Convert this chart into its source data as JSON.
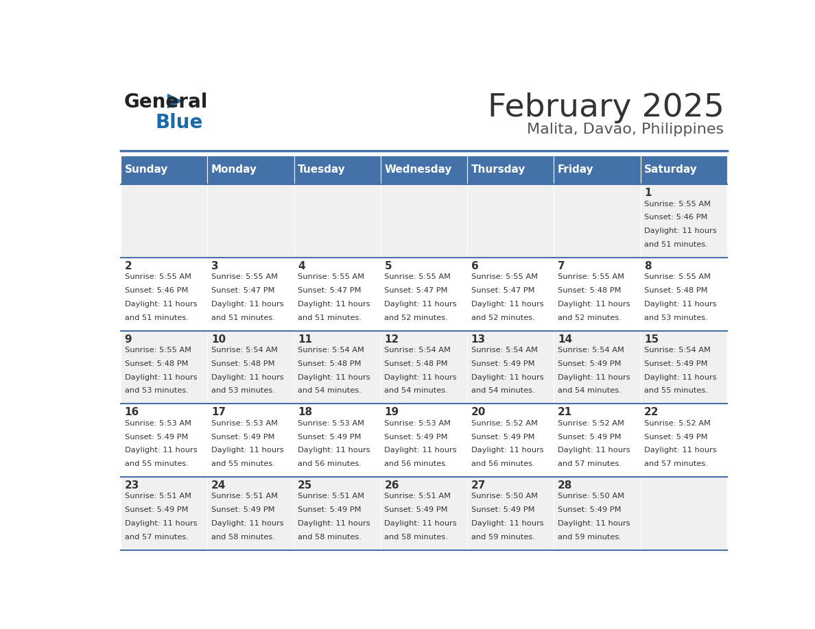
{
  "title": "February 2025",
  "subtitle": "Malita, Davao, Philippines",
  "days_of_week": [
    "Sunday",
    "Monday",
    "Tuesday",
    "Wednesday",
    "Thursday",
    "Friday",
    "Saturday"
  ],
  "header_bg": "#4472a8",
  "header_text": "#ffffff",
  "row_bg_odd": "#f0f0f0",
  "row_bg_even": "#ffffff",
  "cell_border": "#4472a8",
  "day_number_color": "#333333",
  "info_text_color": "#333333",
  "title_color": "#333333",
  "subtitle_color": "#555555",
  "logo_general_color": "#222222",
  "logo_blue_color": "#1a6aaa",
  "calendar_data": [
    [
      {
        "day": null,
        "info": ""
      },
      {
        "day": null,
        "info": ""
      },
      {
        "day": null,
        "info": ""
      },
      {
        "day": null,
        "info": ""
      },
      {
        "day": null,
        "info": ""
      },
      {
        "day": null,
        "info": ""
      },
      {
        "day": 1,
        "info": "Sunrise: 5:55 AM\nSunset: 5:46 PM\nDaylight: 11 hours\nand 51 minutes."
      }
    ],
    [
      {
        "day": 2,
        "info": "Sunrise: 5:55 AM\nSunset: 5:46 PM\nDaylight: 11 hours\nand 51 minutes."
      },
      {
        "day": 3,
        "info": "Sunrise: 5:55 AM\nSunset: 5:47 PM\nDaylight: 11 hours\nand 51 minutes."
      },
      {
        "day": 4,
        "info": "Sunrise: 5:55 AM\nSunset: 5:47 PM\nDaylight: 11 hours\nand 51 minutes."
      },
      {
        "day": 5,
        "info": "Sunrise: 5:55 AM\nSunset: 5:47 PM\nDaylight: 11 hours\nand 52 minutes."
      },
      {
        "day": 6,
        "info": "Sunrise: 5:55 AM\nSunset: 5:47 PM\nDaylight: 11 hours\nand 52 minutes."
      },
      {
        "day": 7,
        "info": "Sunrise: 5:55 AM\nSunset: 5:48 PM\nDaylight: 11 hours\nand 52 minutes."
      },
      {
        "day": 8,
        "info": "Sunrise: 5:55 AM\nSunset: 5:48 PM\nDaylight: 11 hours\nand 53 minutes."
      }
    ],
    [
      {
        "day": 9,
        "info": "Sunrise: 5:55 AM\nSunset: 5:48 PM\nDaylight: 11 hours\nand 53 minutes."
      },
      {
        "day": 10,
        "info": "Sunrise: 5:54 AM\nSunset: 5:48 PM\nDaylight: 11 hours\nand 53 minutes."
      },
      {
        "day": 11,
        "info": "Sunrise: 5:54 AM\nSunset: 5:48 PM\nDaylight: 11 hours\nand 54 minutes."
      },
      {
        "day": 12,
        "info": "Sunrise: 5:54 AM\nSunset: 5:48 PM\nDaylight: 11 hours\nand 54 minutes."
      },
      {
        "day": 13,
        "info": "Sunrise: 5:54 AM\nSunset: 5:49 PM\nDaylight: 11 hours\nand 54 minutes."
      },
      {
        "day": 14,
        "info": "Sunrise: 5:54 AM\nSunset: 5:49 PM\nDaylight: 11 hours\nand 54 minutes."
      },
      {
        "day": 15,
        "info": "Sunrise: 5:54 AM\nSunset: 5:49 PM\nDaylight: 11 hours\nand 55 minutes."
      }
    ],
    [
      {
        "day": 16,
        "info": "Sunrise: 5:53 AM\nSunset: 5:49 PM\nDaylight: 11 hours\nand 55 minutes."
      },
      {
        "day": 17,
        "info": "Sunrise: 5:53 AM\nSunset: 5:49 PM\nDaylight: 11 hours\nand 55 minutes."
      },
      {
        "day": 18,
        "info": "Sunrise: 5:53 AM\nSunset: 5:49 PM\nDaylight: 11 hours\nand 56 minutes."
      },
      {
        "day": 19,
        "info": "Sunrise: 5:53 AM\nSunset: 5:49 PM\nDaylight: 11 hours\nand 56 minutes."
      },
      {
        "day": 20,
        "info": "Sunrise: 5:52 AM\nSunset: 5:49 PM\nDaylight: 11 hours\nand 56 minutes."
      },
      {
        "day": 21,
        "info": "Sunrise: 5:52 AM\nSunset: 5:49 PM\nDaylight: 11 hours\nand 57 minutes."
      },
      {
        "day": 22,
        "info": "Sunrise: 5:52 AM\nSunset: 5:49 PM\nDaylight: 11 hours\nand 57 minutes."
      }
    ],
    [
      {
        "day": 23,
        "info": "Sunrise: 5:51 AM\nSunset: 5:49 PM\nDaylight: 11 hours\nand 57 minutes."
      },
      {
        "day": 24,
        "info": "Sunrise: 5:51 AM\nSunset: 5:49 PM\nDaylight: 11 hours\nand 58 minutes."
      },
      {
        "day": 25,
        "info": "Sunrise: 5:51 AM\nSunset: 5:49 PM\nDaylight: 11 hours\nand 58 minutes."
      },
      {
        "day": 26,
        "info": "Sunrise: 5:51 AM\nSunset: 5:49 PM\nDaylight: 11 hours\nand 58 minutes."
      },
      {
        "day": 27,
        "info": "Sunrise: 5:50 AM\nSunset: 5:49 PM\nDaylight: 11 hours\nand 59 minutes."
      },
      {
        "day": 28,
        "info": "Sunrise: 5:50 AM\nSunset: 5:49 PM\nDaylight: 11 hours\nand 59 minutes."
      },
      {
        "day": null,
        "info": ""
      }
    ]
  ]
}
